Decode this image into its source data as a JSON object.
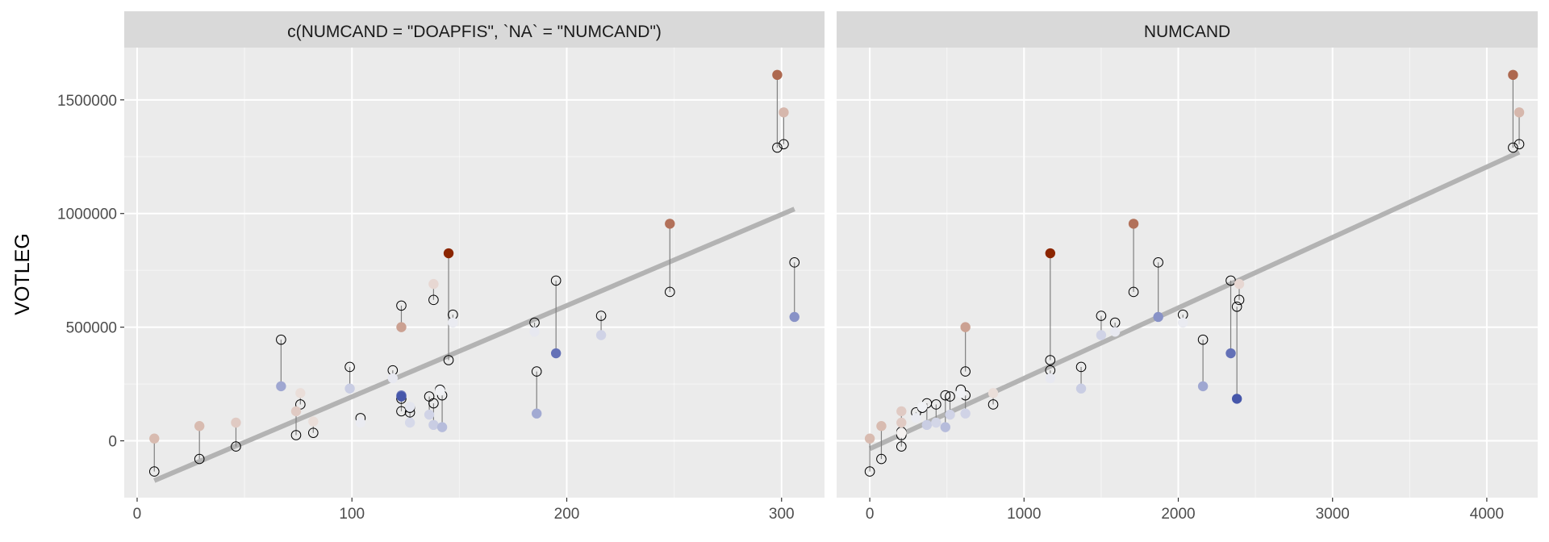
{
  "chart_data": {
    "type": "scatter",
    "ylabel": "VOTLEG",
    "xlabel": "",
    "grid": true,
    "legend": "none",
    "colors": {
      "panel_bg": "#ebebeb",
      "strip_bg": "#d9d9d9",
      "grid_major": "#ffffff",
      "trend_line": "#b3b3b3",
      "segment": "#808080",
      "high": "#8b2500",
      "mid": "#f7f7f7",
      "low": "#1f3399"
    },
    "panels": [
      {
        "strip": "c(NUMCAND = \"DOAPFIS\", `NA` = \"NUMCAND\")",
        "xlim": [
          -6,
          320
        ],
        "ylim": [
          -250000,
          1730000
        ],
        "x_ticks": [
          0,
          100,
          200,
          300
        ],
        "y_ticks": [
          0,
          500000,
          1000000,
          1500000
        ],
        "trend": {
          "x": [
            8,
            306
          ],
          "y": [
            -175000,
            1020000
          ]
        },
        "points": [
          {
            "x": 8,
            "actual": 10000,
            "predicted": -135000,
            "resid": 0.95
          },
          {
            "x": 29,
            "actual": 65000,
            "predicted": -80000,
            "resid": 0.95
          },
          {
            "x": 46,
            "actual": 80000,
            "predicted": -25000,
            "resid": 0.7
          },
          {
            "x": 67,
            "actual": 240000,
            "predicted": 445000,
            "resid": -1.35
          },
          {
            "x": 74,
            "actual": 130000,
            "predicted": 25000,
            "resid": 0.7
          },
          {
            "x": 76,
            "actual": 210000,
            "predicted": 160000,
            "resid": 0.4
          },
          {
            "x": 82,
            "actual": 85000,
            "predicted": 35000,
            "resid": 0.4
          },
          {
            "x": 99,
            "actual": 230000,
            "predicted": 325000,
            "resid": -0.7
          },
          {
            "x": 104,
            "actual": 80000,
            "predicted": 100000,
            "resid": -0.2
          },
          {
            "x": 119,
            "actual": 275000,
            "predicted": 310000,
            "resid": -0.25
          },
          {
            "x": 123,
            "actual": 500000,
            "predicted": 595000,
            "resid": 1.35
          },
          {
            "x": 123,
            "actual": 200000,
            "predicted": 130000,
            "resid": -2.1
          },
          {
            "x": 123,
            "actual": 195000,
            "predicted": 185000,
            "resid": -2.7
          },
          {
            "x": 127,
            "actual": 80000,
            "predicted": 145000,
            "resid": -0.5
          },
          {
            "x": 127,
            "actual": 150000,
            "predicted": 125000,
            "resid": -0.3
          },
          {
            "x": 136,
            "actual": 115000,
            "predicted": 195000,
            "resid": -0.6
          },
          {
            "x": 138,
            "actual": 690000,
            "predicted": 620000,
            "resid": 0.5
          },
          {
            "x": 138,
            "actual": 70000,
            "predicted": 165000,
            "resid": -0.7
          },
          {
            "x": 141,
            "actual": 220000,
            "predicted": 225000,
            "resid": -0.1
          },
          {
            "x": 142,
            "actual": 60000,
            "predicted": 200000,
            "resid": -1.0
          },
          {
            "x": 145,
            "actual": 825000,
            "predicted": 355000,
            "resid": 3.3
          },
          {
            "x": 147,
            "actual": 520000,
            "predicted": 555000,
            "resid": -0.2
          },
          {
            "x": 185,
            "actual": 480000,
            "predicted": 520000,
            "resid": -0.25
          },
          {
            "x": 186,
            "actual": 120000,
            "predicted": 305000,
            "resid": -1.3
          },
          {
            "x": 195,
            "actual": 385000,
            "predicted": 705000,
            "resid": -2.25
          },
          {
            "x": 216,
            "actual": 465000,
            "predicted": 550000,
            "resid": -0.6
          },
          {
            "x": 248,
            "actual": 955000,
            "predicted": 655000,
            "resid": 2.1
          },
          {
            "x": 298,
            "actual": 1610000,
            "predicted": 1290000,
            "resid": 2.25
          },
          {
            "x": 301,
            "actual": 1445000,
            "predicted": 1305000,
            "resid": 1.0
          },
          {
            "x": 306,
            "actual": 545000,
            "predicted": 785000,
            "resid": -1.7
          }
        ]
      },
      {
        "strip": "NUMCAND",
        "xlim": [
          -215,
          4330
        ],
        "ylim": [
          -250000,
          1730000
        ],
        "x_ticks": [
          0,
          1000,
          2000,
          3000,
          4000
        ],
        "y_ticks": [
          0,
          500000,
          1000000,
          1500000
        ],
        "trend": {
          "x": [
            0,
            4210
          ],
          "y": [
            -35000,
            1270000
          ]
        },
        "points": [
          {
            "x": 0,
            "actual": 10000,
            "predicted": -135000,
            "resid": 0.95
          },
          {
            "x": 75,
            "actual": 65000,
            "predicted": -80000,
            "resid": 0.95
          },
          {
            "x": 205,
            "actual": 130000,
            "predicted": 25000,
            "resid": 0.7
          },
          {
            "x": 205,
            "actual": 80000,
            "predicted": -25000,
            "resid": 0.7
          },
          {
            "x": 205,
            "actual": 35000,
            "predicted": 40000,
            "resid": 0.1
          },
          {
            "x": 300,
            "actual": 100000,
            "predicted": 125000,
            "resid": -0.2
          },
          {
            "x": 340,
            "actual": 150000,
            "predicted": 145000,
            "resid": -0.1
          },
          {
            "x": 370,
            "actual": 70000,
            "predicted": 165000,
            "resid": -0.7
          },
          {
            "x": 430,
            "actual": 80000,
            "predicted": 160000,
            "resid": -0.55
          },
          {
            "x": 490,
            "actual": 60000,
            "predicted": 200000,
            "resid": -1.0
          },
          {
            "x": 520,
            "actual": 115000,
            "predicted": 195000,
            "resid": -0.6
          },
          {
            "x": 590,
            "actual": 210000,
            "predicted": 225000,
            "resid": -0.1
          },
          {
            "x": 620,
            "actual": 500000,
            "predicted": 305000,
            "resid": 1.35
          },
          {
            "x": 620,
            "actual": 120000,
            "predicted": 200000,
            "resid": -0.6
          },
          {
            "x": 800,
            "actual": 210000,
            "predicted": 160000,
            "resid": 0.4
          },
          {
            "x": 1170,
            "actual": 825000,
            "predicted": 355000,
            "resid": 3.3
          },
          {
            "x": 1170,
            "actual": 275000,
            "predicted": 310000,
            "resid": -0.25
          },
          {
            "x": 1370,
            "actual": 230000,
            "predicted": 325000,
            "resid": -0.7
          },
          {
            "x": 1500,
            "actual": 465000,
            "predicted": 550000,
            "resid": -0.6
          },
          {
            "x": 1590,
            "actual": 480000,
            "predicted": 520000,
            "resid": -0.25
          },
          {
            "x": 1710,
            "actual": 955000,
            "predicted": 655000,
            "resid": 2.1
          },
          {
            "x": 1870,
            "actual": 545000,
            "predicted": 785000,
            "resid": -1.7
          },
          {
            "x": 2030,
            "actual": 520000,
            "predicted": 555000,
            "resid": -0.2
          },
          {
            "x": 2160,
            "actual": 240000,
            "predicted": 445000,
            "resid": -1.35
          },
          {
            "x": 2340,
            "actual": 385000,
            "predicted": 705000,
            "resid": -2.25
          },
          {
            "x": 2380,
            "actual": 185000,
            "predicted": 590000,
            "resid": -2.7
          },
          {
            "x": 2395,
            "actual": 690000,
            "predicted": 620000,
            "resid": 0.5
          },
          {
            "x": 4170,
            "actual": 1610000,
            "predicted": 1290000,
            "resid": 2.25
          },
          {
            "x": 4210,
            "actual": 1445000,
            "predicted": 1305000,
            "resid": 1.0
          }
        ]
      }
    ]
  }
}
